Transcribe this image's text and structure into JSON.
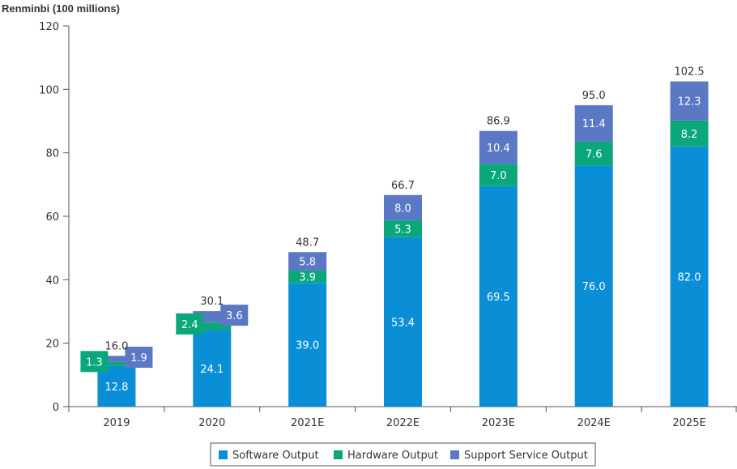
{
  "chart_data": {
    "type": "bar",
    "stacked": true,
    "ylabel": "Renminbi (100 millions)",
    "ylim": [
      0,
      120
    ],
    "yticks": [
      "0",
      "20",
      "40",
      "60",
      "80",
      "100",
      "120"
    ],
    "categories": [
      "2019",
      "2020",
      "2021E",
      "2022E",
      "2023E",
      "2024E",
      "2025E"
    ],
    "series": [
      {
        "name": "Software Output",
        "color": "#0a8fd6",
        "values": [
          12.8,
          24.1,
          39.0,
          53.4,
          69.5,
          76.0,
          82.0
        ],
        "labels": [
          "12.8",
          "24.1",
          "39.0",
          "53.4",
          "69.5",
          "76.0",
          "82.0"
        ]
      },
      {
        "name": "Hardware Output",
        "color": "#0aa77a",
        "values": [
          1.3,
          2.4,
          3.9,
          5.3,
          7.0,
          7.6,
          8.2
        ],
        "labels": [
          "1.3",
          "2.4",
          "3.9",
          "5.3",
          "7.0",
          "7.6",
          "8.2"
        ]
      },
      {
        "name": "Support Service Output",
        "color": "#5a78c4",
        "values": [
          1.9,
          3.6,
          5.8,
          8.0,
          10.4,
          11.4,
          12.3
        ],
        "labels": [
          "1.9",
          "3.6",
          "5.8",
          "8.0",
          "10.4",
          "11.4",
          "12.3"
        ]
      }
    ],
    "totals": [
      "16.0",
      "30.1",
      "48.7",
      "66.7",
      "86.9",
      "95.0",
      "102.5"
    ],
    "grid": false,
    "legend": "bottom"
  }
}
